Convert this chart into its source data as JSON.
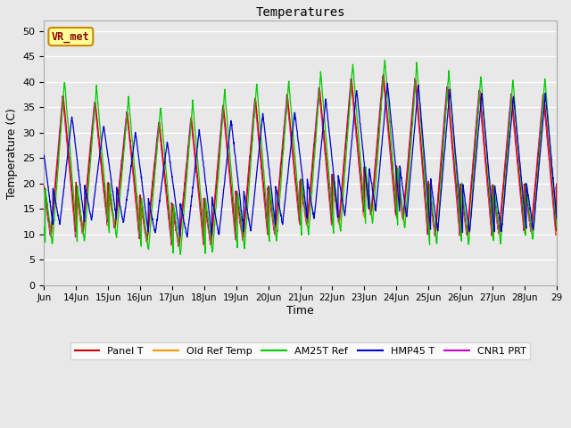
{
  "title": "Temperatures",
  "xlabel": "Time",
  "ylabel": "Temperature (C)",
  "annotation": "VR_met",
  "xlim_days": [
    13,
    29
  ],
  "ylim": [
    0,
    52
  ],
  "yticks": [
    0,
    5,
    10,
    15,
    20,
    25,
    30,
    35,
    40,
    45,
    50
  ],
  "xtick_labels": [
    "Jun",
    "14Jun",
    "15Jun",
    "16Jun",
    "17Jun",
    "18Jun",
    "19Jun",
    "20Jun",
    "21Jun",
    "22Jun",
    "23Jun",
    "24Jun",
    "25Jun",
    "26Jun",
    "27Jun",
    "28Jun",
    "29"
  ],
  "series_colors": {
    "Panel T": "#cc0000",
    "Old Ref Temp": "#ff9900",
    "AM25T Ref": "#00cc00",
    "HMP45 T": "#0000cc",
    "CNR1 PRT": "#cc00cc"
  },
  "bg_color": "#e8e8e8",
  "grid_color": "#ffffff",
  "start_day": 13,
  "end_day": 29,
  "figsize": [
    6.4,
    4.8
  ],
  "dpi": 100
}
